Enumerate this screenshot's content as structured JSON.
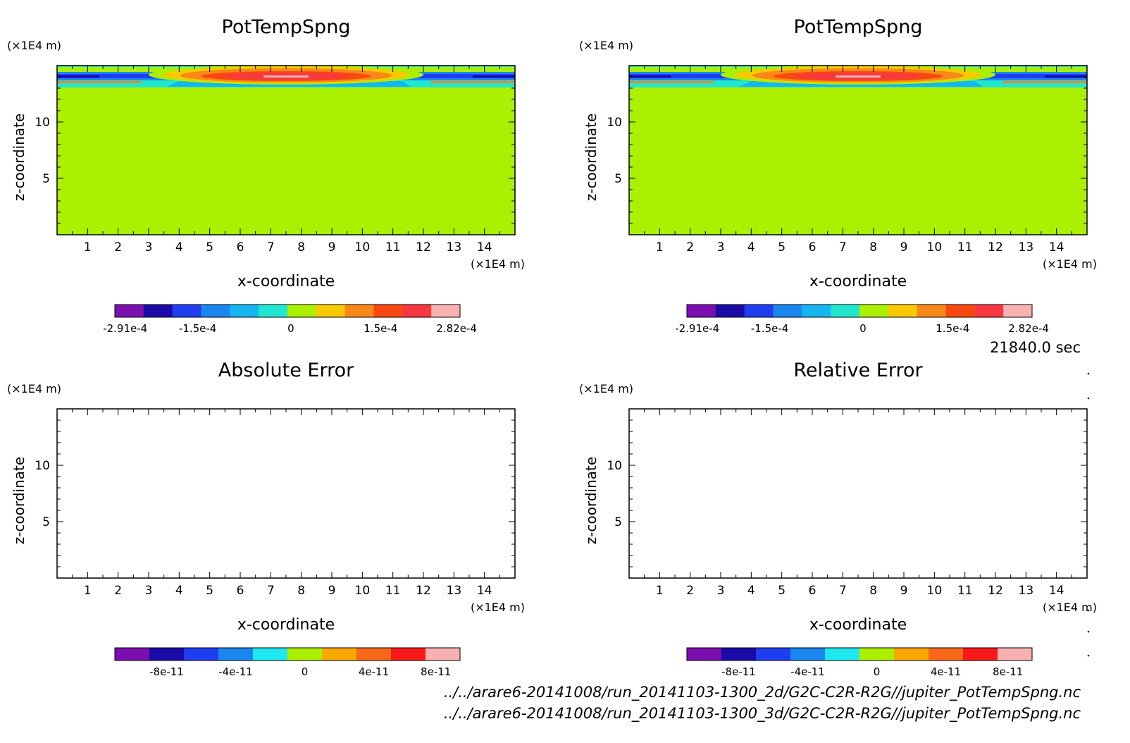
{
  "timestamp": "21840.0 sec",
  "files": [
    "../../arare6-20141008/run_20141103-1300_2d/G2C-C2R-R2G//jupiter_PotTempSpng.nc",
    "../../arare6-20141008/run_20141103-1300_3d/G2C-C2R-R2G//jupiter_PotTempSpng.nc"
  ],
  "chart_data": [
    {
      "type": "heatmap",
      "title": "PotTempSpng",
      "xlabel": "x-coordinate",
      "ylabel": "z-coordinate",
      "x_unit": "(×1E4 m)",
      "y_unit": "(×1E4 m)",
      "xlim": [
        0,
        15
      ],
      "ylim": [
        0,
        15
      ],
      "x_ticks": [
        "1",
        "2",
        "3",
        "4",
        "5",
        "6",
        "7",
        "8",
        "9",
        "10",
        "11",
        "12",
        "13",
        "14"
      ],
      "y_ticks": [
        "5",
        "10"
      ],
      "field": "filled",
      "colorbar": {
        "colors": [
          "#7b0fb0",
          "#1a0aa8",
          "#1f3ef0",
          "#1a86f0",
          "#15b6f0",
          "#20e8d0",
          "#aaf000",
          "#f8c800",
          "#f88818",
          "#f84810",
          "#f83840",
          "#f8b0b0"
        ],
        "tick_labels": [
          "-2.91e-4",
          "-1.5e-4",
          "0",
          "1.5e-4",
          "2.82e-4"
        ]
      }
    },
    {
      "type": "heatmap",
      "title": "PotTempSpng",
      "xlabel": "x-coordinate",
      "ylabel": "z-coordinate",
      "x_unit": "(×1E4 m)",
      "y_unit": "(×1E4 m)",
      "xlim": [
        0,
        15
      ],
      "ylim": [
        0,
        15
      ],
      "x_ticks": [
        "1",
        "2",
        "3",
        "4",
        "5",
        "6",
        "7",
        "8",
        "9",
        "10",
        "11",
        "12",
        "13",
        "14"
      ],
      "y_ticks": [
        "5",
        "10"
      ],
      "field": "filled",
      "colorbar": {
        "colors": [
          "#7b0fb0",
          "#1a0aa8",
          "#1f3ef0",
          "#1a86f0",
          "#15b6f0",
          "#20e8d0",
          "#aaf000",
          "#f8c800",
          "#f88818",
          "#f84810",
          "#f83840",
          "#f8b0b0"
        ],
        "tick_labels": [
          "-2.91e-4",
          "-1.5e-4",
          "0",
          "1.5e-4",
          "2.82e-4"
        ]
      }
    },
    {
      "type": "heatmap",
      "title": "Absolute Error",
      "xlabel": "x-coordinate",
      "ylabel": "z-coordinate",
      "x_unit": "(×1E4 m)",
      "y_unit": "(×1E4 m)",
      "xlim": [
        0,
        15
      ],
      "ylim": [
        0,
        15
      ],
      "x_ticks": [
        "1",
        "2",
        "3",
        "4",
        "5",
        "6",
        "7",
        "8",
        "9",
        "10",
        "11",
        "12",
        "13",
        "14"
      ],
      "y_ticks": [
        "5",
        "10"
      ],
      "field": "empty",
      "colorbar": {
        "colors": [
          "#7b0fb0",
          "#1a0aa8",
          "#1f3ef0",
          "#1a86f0",
          "#20e8f0",
          "#aaf000",
          "#f8a800",
          "#f86818",
          "#f81818",
          "#f8b0b0"
        ],
        "tick_labels": [
          "-8e-11",
          "-4e-11",
          "0",
          "4e-11",
          "8e-11"
        ]
      }
    },
    {
      "type": "heatmap",
      "title": "Relative Error",
      "xlabel": "x-coordinate",
      "ylabel": "z-coordinate",
      "x_unit": "(×1E4 m)",
      "y_unit": "(×1E4 m)",
      "xlim": [
        0,
        15
      ],
      "ylim": [
        0,
        15
      ],
      "x_ticks": [
        "1",
        "2",
        "3",
        "4",
        "5",
        "6",
        "7",
        "8",
        "9",
        "10",
        "11",
        "12",
        "13",
        "14"
      ],
      "y_ticks": [
        "5",
        "10"
      ],
      "field": "empty",
      "colorbar": {
        "colors": [
          "#7b0fb0",
          "#1a0aa8",
          "#1f3ef0",
          "#1a86f0",
          "#20e8f0",
          "#aaf000",
          "#f8a800",
          "#f86818",
          "#f81818",
          "#f8b0b0"
        ],
        "tick_labels": [
          "-8e-11",
          "-4e-11",
          "0",
          "4e-11",
          "8e-11"
        ]
      }
    }
  ]
}
